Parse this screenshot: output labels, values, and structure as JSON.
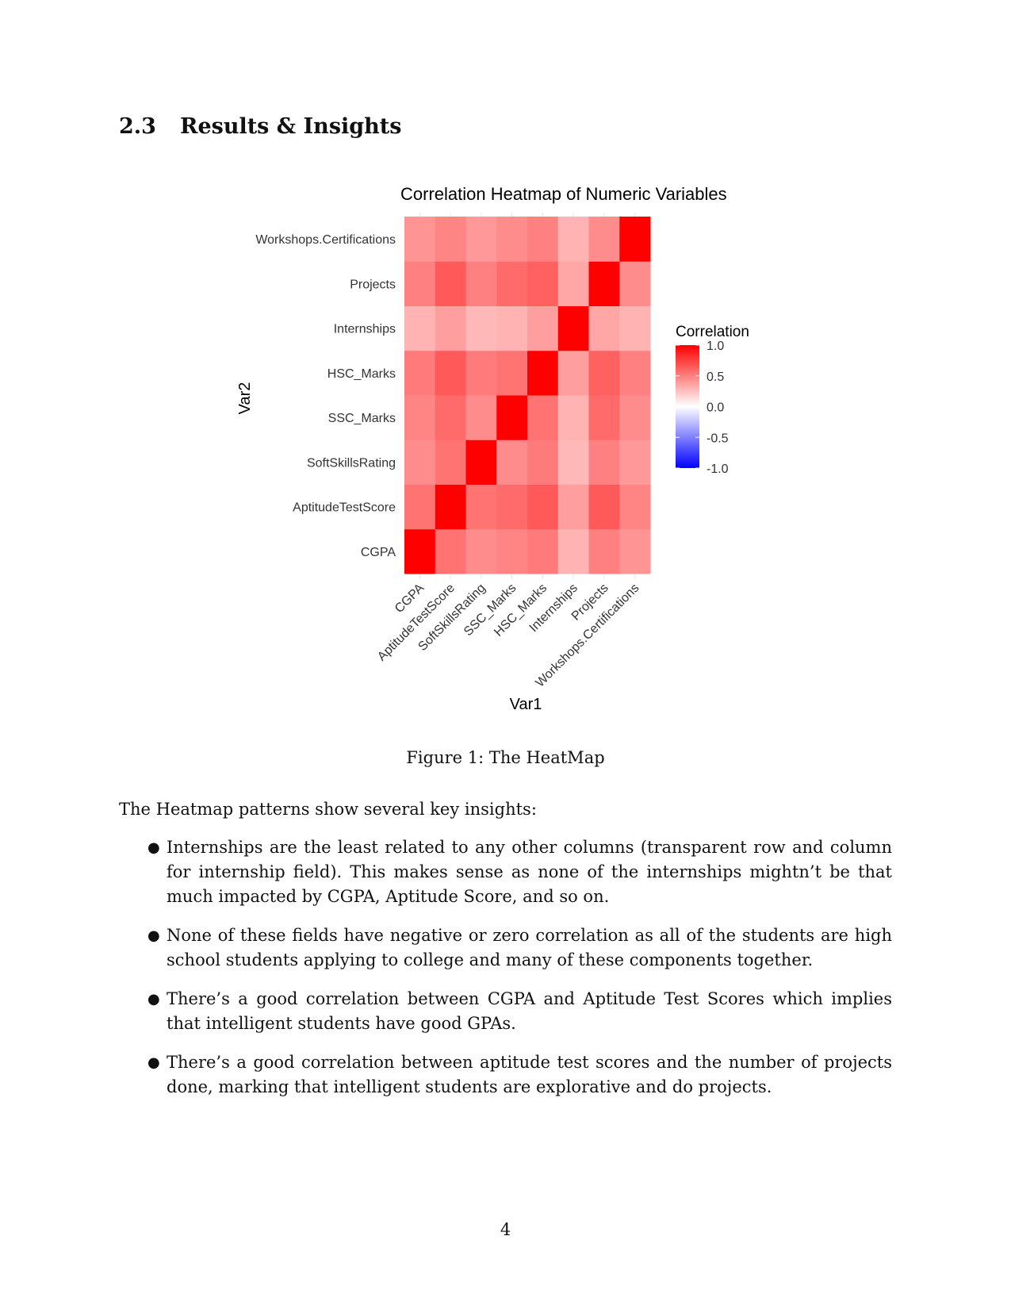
{
  "section": {
    "number": "2.3",
    "title": "Results & Insights"
  },
  "chart_data": {
    "type": "heatmap",
    "title": "Correlation Heatmap of Numeric Variables",
    "xlabel": "Var1",
    "ylabel": "Var2",
    "variables": [
      "CGPA",
      "AptitudeTestScore",
      "SoftSkillsRating",
      "SSC_Marks",
      "HSC_Marks",
      "Internships",
      "Projects",
      "Workshops.Certifications"
    ],
    "matrix": [
      [
        1.0,
        0.55,
        0.45,
        0.48,
        0.52,
        0.3,
        0.5,
        0.42
      ],
      [
        0.55,
        1.0,
        0.55,
        0.58,
        0.65,
        0.38,
        0.65,
        0.48
      ],
      [
        0.45,
        0.55,
        1.0,
        0.45,
        0.52,
        0.28,
        0.5,
        0.4
      ],
      [
        0.48,
        0.58,
        0.45,
        1.0,
        0.55,
        0.3,
        0.58,
        0.45
      ],
      [
        0.52,
        0.65,
        0.52,
        0.55,
        1.0,
        0.38,
        0.62,
        0.5
      ],
      [
        0.3,
        0.38,
        0.28,
        0.3,
        0.38,
        1.0,
        0.35,
        0.3
      ],
      [
        0.5,
        0.65,
        0.5,
        0.58,
        0.62,
        0.35,
        1.0,
        0.45
      ],
      [
        0.42,
        0.48,
        0.4,
        0.45,
        0.5,
        0.3,
        0.45,
        1.0
      ]
    ],
    "legend": {
      "title": "Correlation",
      "ticks": [
        "1.0",
        "0.5",
        "0.0",
        "-0.5",
        "-1.0"
      ],
      "colors": {
        "low": "#0000ff",
        "mid": "#ffffff",
        "high": "#ff0000"
      },
      "range": [
        -1,
        1
      ]
    }
  },
  "figure_caption": "Figure 1: The HeatMap",
  "intro": "The Heatmap patterns show several key insights:",
  "insights": [
    "Internships are the least related to any other columns (transparent row and column for internship field). This makes sense as none of the internships mightn’t be that much impacted by CGPA, Aptitude Score, and so on.",
    "None of these fields have negative or zero correlation as all of the students are high school students applying to college and many of these components together.",
    "There’s a good correlation between CGPA and Aptitude Test Scores which implies that intelligent students have good GPAs.",
    "There’s a good correlation between aptitude test scores and the number of projects done, marking that intelligent students are explorative and do projects."
  ],
  "page_number": "4"
}
